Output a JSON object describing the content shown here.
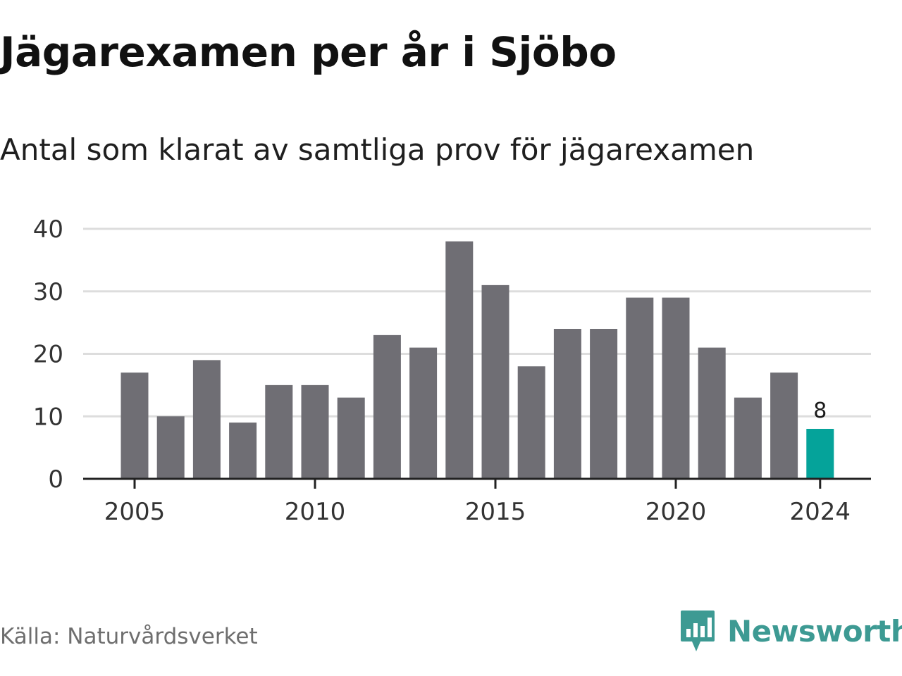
{
  "header": {
    "title": "Jägarexamen per år i Sjöbo",
    "subtitle": "Antal som klarat av samtliga prov för jägarexamen"
  },
  "footer": {
    "source": "Källa: Naturvårdsverket",
    "brand": "Newsworthy",
    "brand_icon": "newsworthy-logo-icon"
  },
  "colors": {
    "bar": "#6f6e74",
    "highlight": "#05a39a",
    "grid": "#dddddd",
    "axis": "#222222",
    "brand": "#3d9a93"
  },
  "chart_data": {
    "type": "bar",
    "categories": [
      "2005",
      "2006",
      "2007",
      "2008",
      "2009",
      "2010",
      "2011",
      "2012",
      "2013",
      "2014",
      "2015",
      "2016",
      "2017",
      "2018",
      "2019",
      "2020",
      "2021",
      "2022",
      "2023",
      "2024"
    ],
    "values": [
      17,
      10,
      19,
      9,
      15,
      15,
      13,
      23,
      21,
      38,
      31,
      18,
      24,
      24,
      29,
      29,
      21,
      13,
      17,
      8
    ],
    "highlight_index": 19,
    "highlight_label": "8",
    "x_tick_labels": [
      "2005",
      "2010",
      "2015",
      "2020",
      "2024"
    ],
    "y_ticks": [
      0,
      10,
      20,
      30,
      40
    ],
    "ylim": [
      0,
      40
    ],
    "xlabel": "",
    "ylabel": "",
    "grid": true,
    "legend": "none"
  }
}
